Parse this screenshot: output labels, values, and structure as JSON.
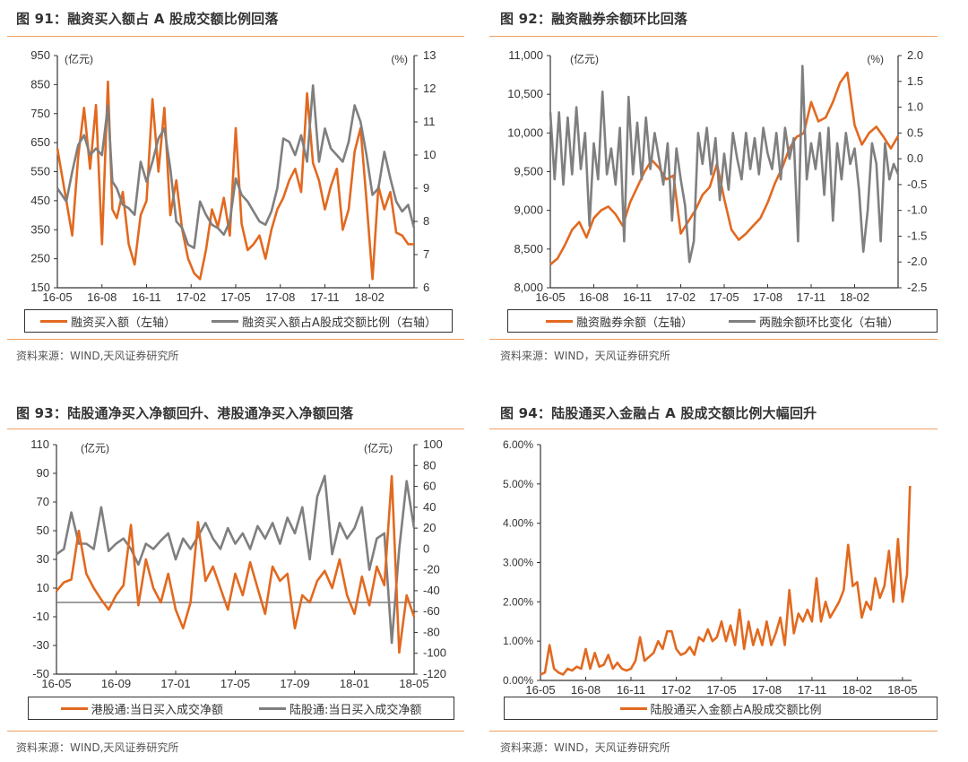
{
  "colors": {
    "orange": "#E2691F",
    "gray": "#7F7F7F",
    "rule": "#F0A060",
    "axis": "#333333"
  },
  "panels": [
    {
      "id": "fig91",
      "title": "图 91：融资买入额占 A 股成交额比例回落",
      "source": "资料来源：WIND,天风证券研究所",
      "left_unit": "(亿元)",
      "right_unit": "(%)",
      "legend": [
        "融资买入额（左轴）",
        "融资买入额占A股成交额比例（右轴）"
      ]
    },
    {
      "id": "fig92",
      "title": "图 92：融资融券余额环比回落",
      "source": "资料来源：WIND，天风证券研究所",
      "left_unit": "(亿元)",
      "right_unit": "(%)",
      "legend": [
        "融资融券余额（左轴）",
        "两融余额环比变化（右轴）"
      ]
    },
    {
      "id": "fig93",
      "title": "图 93：陆股通净买入净额回升、港股通净买入净额回落",
      "source": "资料来源：WIND,天风证券研究所",
      "left_unit": "(亿元)",
      "right_unit": "(亿元)",
      "legend": [
        "港股通:当日买入成交净额",
        "陆股通:当日买入成交净额"
      ]
    },
    {
      "id": "fig94",
      "title": "图 94：陆股通买入金融占 A 股成交额比例大幅回升",
      "source": "资料来源：WIND，天风证券研究所",
      "legend": [
        "陆股通买入金额占A股成交额比例"
      ]
    }
  ],
  "chart_data": [
    {
      "type": "line",
      "title": "图 91：融资买入额占 A 股成交额比例回落",
      "xlabel": "",
      "ylabel": "(亿元)",
      "y2label": "(%)",
      "x_ticks": [
        "16-05",
        "16-08",
        "16-11",
        "17-02",
        "17-05",
        "17-08",
        "17-11",
        "18-02"
      ],
      "ylim": [
        150,
        950
      ],
      "y_ticks": [
        150,
        250,
        350,
        450,
        550,
        650,
        750,
        850,
        950
      ],
      "y2lim": [
        6,
        13
      ],
      "y2_ticks": [
        6,
        7,
        8,
        9,
        10,
        11,
        12,
        13
      ],
      "x_range": [
        "2016-05",
        "2018-05"
      ],
      "grid": false,
      "legend_position": "bottom",
      "series": [
        {
          "name": "融资买入额（左轴）",
          "axis": "left",
          "color": "#E2691F",
          "x": [
            0,
            0.6,
            1,
            1.4,
            1.8,
            2.2,
            2.6,
            3,
            3.4,
            3.7,
            4,
            4.4,
            4.8,
            5.2,
            5.6,
            6,
            6.4,
            6.8,
            7.2,
            7.6,
            8,
            8.4,
            8.8,
            9.2,
            9.6,
            10,
            10.4,
            10.8,
            11.2,
            11.6,
            12,
            12.4,
            12.8,
            13.2,
            13.6,
            14,
            14.4,
            14.8,
            15.2,
            15.6,
            16,
            16.4,
            16.8,
            17.2,
            17.6,
            18,
            18.4,
            18.8,
            19.2,
            19.6,
            20,
            20.4,
            20.8,
            21.2,
            21.6,
            22,
            22.4,
            22.8,
            23.2,
            23.6,
            24
          ],
          "values": [
            630,
            450,
            330,
            600,
            770,
            560,
            780,
            300,
            860,
            420,
            390,
            480,
            300,
            230,
            400,
            450,
            800,
            550,
            770,
            400,
            520,
            350,
            250,
            200,
            180,
            280,
            420,
            360,
            460,
            330,
            700,
            370,
            280,
            300,
            330,
            250,
            350,
            420,
            460,
            520,
            560,
            480,
            820,
            580,
            520,
            420,
            500,
            560,
            350,
            420,
            620,
            700,
            450,
            180,
            500,
            420,
            480,
            340,
            330,
            300,
            300
          ]
        },
        {
          "name": "融资买入额占A股成交额比例（右轴）",
          "axis": "right",
          "color": "#7F7F7F",
          "x": [
            0,
            0.6,
            1,
            1.4,
            1.8,
            2.2,
            2.6,
            3,
            3.4,
            3.7,
            4,
            4.4,
            4.8,
            5.2,
            5.6,
            6,
            6.4,
            6.8,
            7.2,
            7.6,
            8,
            8.4,
            8.8,
            9.2,
            9.6,
            10,
            10.4,
            10.8,
            11.2,
            11.6,
            12,
            12.4,
            12.8,
            13.2,
            13.6,
            14,
            14.4,
            14.8,
            15.2,
            15.6,
            16,
            16.4,
            16.8,
            17.2,
            17.6,
            18,
            18.4,
            18.8,
            19.2,
            19.6,
            20,
            20.4,
            20.8,
            21.2,
            21.6,
            22,
            22.4,
            22.8,
            23.2,
            23.6,
            24
          ],
          "values": [
            9.0,
            8.6,
            9.5,
            10.3,
            10.6,
            10.0,
            10.2,
            10.0,
            11.5,
            9.2,
            9.0,
            8.5,
            8.4,
            8.2,
            9.8,
            9.2,
            9.8,
            10.5,
            10.8,
            9.6,
            8.0,
            7.8,
            7.3,
            7.2,
            8.6,
            8.2,
            7.9,
            7.8,
            7.6,
            8.0,
            9.3,
            8.8,
            8.6,
            8.3,
            8.0,
            7.9,
            8.3,
            9.0,
            10.5,
            10.4,
            10.0,
            10.6,
            9.8,
            12.1,
            9.8,
            10.8,
            10.2,
            10.0,
            9.8,
            10.4,
            11.5,
            11.0,
            10.0,
            8.8,
            9.0,
            10.1,
            9.3,
            8.6,
            8.3,
            8.5,
            7.8
          ]
        }
      ]
    },
    {
      "type": "line",
      "title": "图 92：融资融券余额环比回落",
      "ylabel": "(亿元)",
      "y2label": "(%)",
      "x_ticks": [
        "16-05",
        "16-08",
        "16-11",
        "17-02",
        "17-05",
        "17-08",
        "17-11",
        "18-02"
      ],
      "ylim": [
        8000,
        11000
      ],
      "y_ticks": [
        8000,
        8500,
        9000,
        9500,
        10000,
        10500,
        11000
      ],
      "y2lim": [
        -2.5,
        2.0
      ],
      "y2_ticks": [
        -2.5,
        -2.0,
        -1.5,
        -1.0,
        -0.5,
        0.0,
        0.5,
        1.0,
        1.5,
        2.0
      ],
      "grid": false,
      "legend_position": "bottom",
      "series": [
        {
          "name": "融资融券余额（左轴）",
          "axis": "left",
          "color": "#E2691F",
          "x": [
            0,
            0.5,
            1,
            1.5,
            2,
            2.5,
            3,
            3.5,
            4,
            4.5,
            5,
            5.5,
            6,
            6.5,
            7,
            7.5,
            8,
            8.5,
            9,
            9.5,
            10,
            10.5,
            11,
            11.5,
            12,
            12.5,
            13,
            13.5,
            14,
            14.5,
            15,
            15.5,
            16,
            16.5,
            17,
            17.5,
            18,
            18.5,
            19,
            19.5,
            20,
            20.5,
            21,
            21.5,
            22,
            22.5,
            23,
            23.5,
            24
          ],
          "values": [
            8300,
            8380,
            8550,
            8750,
            8850,
            8650,
            8900,
            9000,
            9050,
            8950,
            8800,
            9100,
            9300,
            9500,
            9650,
            9550,
            9400,
            9450,
            8700,
            8850,
            9000,
            9200,
            9300,
            9600,
            9150,
            8750,
            8620,
            8700,
            8800,
            8900,
            9100,
            9350,
            9550,
            9800,
            9950,
            10000,
            10400,
            10150,
            10200,
            10400,
            10650,
            10780,
            10100,
            9850,
            10000,
            10080,
            9950,
            9800,
            9960
          ]
        },
        {
          "name": "两融余额环比变化（右轴）",
          "axis": "right",
          "color": "#7F7F7F",
          "x": [
            0,
            0.3,
            0.6,
            0.9,
            1.2,
            1.5,
            1.8,
            2.1,
            2.4,
            2.7,
            3.0,
            3.3,
            3.6,
            3.9,
            4.2,
            4.5,
            4.8,
            5.1,
            5.4,
            5.7,
            6.0,
            6.3,
            6.6,
            6.9,
            7.2,
            7.5,
            7.8,
            8.1,
            8.4,
            8.7,
            9.0,
            9.3,
            9.6,
            9.9,
            10.2,
            10.5,
            10.8,
            11.1,
            11.4,
            11.7,
            12.0,
            12.3,
            12.6,
            12.9,
            13.2,
            13.5,
            13.8,
            14.1,
            14.4,
            14.7,
            15.0,
            15.3,
            15.6,
            15.9,
            16.2,
            16.5,
            16.8,
            17.1,
            17.4,
            17.7,
            18.0,
            18.3,
            18.6,
            18.9,
            19.2,
            19.5,
            19.8,
            20.1,
            20.4,
            20.7,
            21.0,
            21.3,
            21.6,
            21.9,
            22.2,
            22.5,
            22.8,
            23.1,
            23.4,
            23.7,
            24.0
          ],
          "values": [
            0.9,
            -0.4,
            0.9,
            -0.5,
            0.8,
            -0.3,
            1.0,
            -0.2,
            0.5,
            -1.3,
            0.3,
            -0.4,
            1.3,
            -0.3,
            0.2,
            -0.5,
            0.6,
            -1.6,
            1.2,
            -0.3,
            0.7,
            -0.4,
            0.8,
            -0.2,
            0.5,
            0.0,
            -0.5,
            0.3,
            -1.2,
            0.2,
            -0.4,
            -0.9,
            -2.0,
            -1.6,
            0.5,
            -0.1,
            0.6,
            -0.3,
            0.4,
            -0.8,
            0.1,
            -0.6,
            0.5,
            0.0,
            -0.4,
            0.5,
            -0.2,
            0.4,
            -0.3,
            0.6,
            0.1,
            -0.2,
            0.5,
            -0.4,
            0.6,
            0.0,
            0.4,
            -1.6,
            1.8,
            -0.4,
            0.3,
            -0.2,
            0.5,
            -0.7,
            0.6,
            -1.2,
            0.3,
            -0.4,
            0.5,
            -0.1,
            0.2,
            -0.6,
            -1.8,
            -1.0,
            0.3,
            -0.1,
            -1.6,
            0.3,
            -0.4,
            -0.1,
            -0.3
          ]
        }
      ]
    },
    {
      "type": "line",
      "title": "图 93：陆股通净买入净额回升、港股通净买入净额回落",
      "ylabel": "(亿元)",
      "y2label": "(亿元)",
      "x_ticks": [
        "16-05",
        "16-09",
        "17-01",
        "17-05",
        "17-09",
        "18-01",
        "18-05"
      ],
      "ylim": [
        -50,
        110
      ],
      "y_ticks": [
        -50,
        -30,
        -10,
        10,
        30,
        50,
        70,
        90,
        110
      ],
      "y2lim": [
        -120,
        100
      ],
      "y2_ticks": [
        -120,
        -100,
        -80,
        -60,
        -40,
        -20,
        0,
        20,
        40,
        60,
        80,
        100
      ],
      "zero_line_left": 0,
      "grid": false,
      "legend_position": "bottom",
      "series": [
        {
          "name": "港股通:当日买入成交净额",
          "axis": "left",
          "color": "#E2691F",
          "x": [
            0,
            0.5,
            1,
            1.5,
            2,
            2.5,
            3,
            3.5,
            4,
            4.5,
            5,
            5.5,
            6,
            6.5,
            7,
            7.5,
            8,
            8.5,
            9,
            9.5,
            10,
            10.5,
            11,
            11.5,
            12,
            12.5,
            13,
            13.5,
            14,
            14.5,
            15,
            15.5,
            16,
            16.5,
            17,
            17.5,
            18,
            18.5,
            19,
            19.5,
            20,
            20.5,
            21,
            21.5,
            22,
            22.5,
            23,
            23.5,
            24
          ],
          "values": [
            8,
            14,
            16,
            50,
            20,
            10,
            2,
            -5,
            5,
            12,
            54,
            -2,
            30,
            10,
            0,
            20,
            -5,
            -18,
            0,
            56,
            15,
            25,
            10,
            -5,
            20,
            5,
            28,
            10,
            -8,
            25,
            15,
            20,
            -18,
            5,
            0,
            15,
            22,
            10,
            30,
            5,
            -8,
            18,
            -2,
            25,
            12,
            88,
            -35,
            5,
            -10
          ]
        },
        {
          "name": "陆股通:当日买入成交净额",
          "axis": "right",
          "color": "#7F7F7F",
          "x": [
            0,
            0.5,
            1,
            1.5,
            2,
            2.5,
            3,
            3.5,
            4,
            4.5,
            5,
            5.5,
            6,
            6.5,
            7,
            7.5,
            8,
            8.5,
            9,
            9.5,
            10,
            10.5,
            11,
            11.5,
            12,
            12.5,
            13,
            13.5,
            14,
            14.5,
            15,
            15.5,
            16,
            16.5,
            17,
            17.5,
            18,
            18.5,
            19,
            19.5,
            20,
            20.5,
            21,
            21.5,
            22,
            22.5,
            23,
            23.5,
            24
          ],
          "values": [
            -5,
            0,
            35,
            5,
            5,
            0,
            40,
            -2,
            5,
            10,
            0,
            -15,
            5,
            0,
            8,
            15,
            -10,
            10,
            0,
            12,
            25,
            10,
            0,
            20,
            5,
            15,
            0,
            22,
            10,
            25,
            5,
            30,
            15,
            40,
            -10,
            50,
            70,
            -5,
            25,
            10,
            20,
            40,
            -20,
            10,
            15,
            -90,
            0,
            65,
            20
          ]
        }
      ]
    },
    {
      "type": "line",
      "title": "图 94：陆股通买入金融占 A 股成交额比例大幅回升",
      "ylabel": "",
      "x_ticks": [
        "16-05",
        "16-08",
        "16-11",
        "17-02",
        "17-05",
        "17-08",
        "17-11",
        "18-02",
        "18-05"
      ],
      "ylim": [
        0,
        6
      ],
      "y_ticks": [
        "0.00%",
        "1.00%",
        "2.00%",
        "3.00%",
        "4.00%",
        "5.00%",
        "6.00%"
      ],
      "grid": false,
      "legend_position": "bottom",
      "series": [
        {
          "name": "陆股通买入金额占A股成交额比例",
          "axis": "left",
          "color": "#E2691F",
          "x": [
            0,
            0.3,
            0.6,
            0.9,
            1.2,
            1.5,
            1.8,
            2.1,
            2.4,
            2.7,
            3.0,
            3.3,
            3.6,
            3.9,
            4.2,
            4.5,
            4.8,
            5.1,
            5.4,
            5.7,
            6.0,
            6.3,
            6.6,
            6.9,
            7.2,
            7.5,
            7.8,
            8.1,
            8.4,
            8.7,
            9.0,
            9.3,
            9.6,
            9.9,
            10.2,
            10.5,
            10.8,
            11.1,
            11.4,
            11.7,
            12.0,
            12.3,
            12.6,
            12.9,
            13.2,
            13.5,
            13.8,
            14.1,
            14.4,
            14.7,
            15.0,
            15.3,
            15.6,
            15.9,
            16.2,
            16.5,
            16.8,
            17.1,
            17.4,
            17.7,
            18.0,
            18.3,
            18.6,
            18.9,
            19.2,
            19.5,
            19.8,
            20.1,
            20.4,
            20.7,
            21.0,
            21.3,
            21.6,
            21.9,
            22.2,
            22.5,
            22.8,
            23.1,
            23.4,
            23.7,
            24.0,
            24.3,
            24.5
          ],
          "values": [
            0.15,
            0.2,
            0.9,
            0.3,
            0.2,
            0.15,
            0.3,
            0.25,
            0.35,
            0.3,
            0.8,
            0.3,
            0.7,
            0.35,
            0.4,
            0.65,
            0.3,
            0.45,
            0.3,
            0.25,
            0.3,
            0.5,
            1.1,
            0.5,
            0.6,
            0.7,
            1.0,
            0.8,
            1.25,
            1.25,
            0.8,
            0.65,
            0.7,
            0.85,
            0.65,
            1.1,
            1.0,
            1.3,
            1.0,
            1.1,
            1.5,
            1.0,
            1.4,
            0.9,
            1.8,
            0.8,
            1.5,
            0.9,
            1.3,
            0.9,
            1.5,
            0.9,
            1.2,
            1.6,
            0.9,
            2.3,
            1.2,
            1.7,
            1.5,
            1.8,
            1.5,
            2.6,
            1.5,
            2.0,
            1.6,
            1.8,
            2.0,
            2.3,
            3.45,
            2.4,
            2.5,
            1.6,
            2.0,
            1.8,
            2.6,
            2.1,
            2.4,
            3.3,
            2.0,
            3.6,
            2.0,
            2.7,
            4.95
          ]
        }
      ]
    }
  ]
}
